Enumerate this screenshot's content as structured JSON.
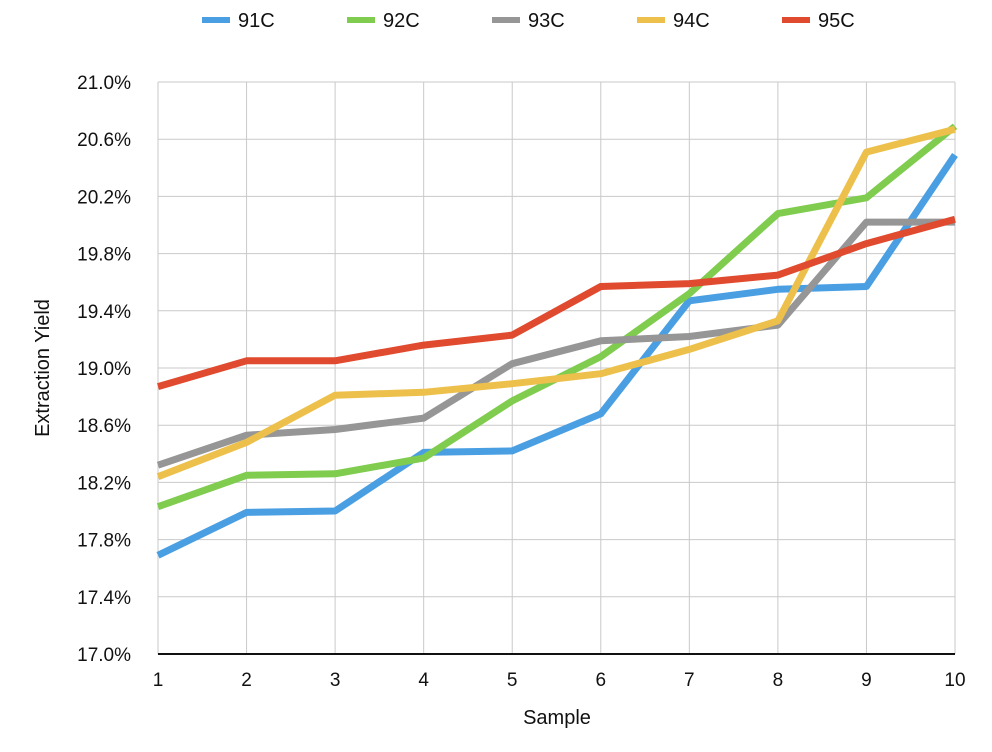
{
  "chart_data": {
    "type": "line",
    "title": "",
    "xlabel": "Sample",
    "ylabel": "Extraction Yield",
    "x": [
      1,
      2,
      3,
      4,
      5,
      6,
      7,
      8,
      9,
      10
    ],
    "x_tick_labels": [
      "1",
      "2",
      "3",
      "4",
      "5",
      "6",
      "7",
      "8",
      "9",
      "10"
    ],
    "ylim": [
      17.0,
      21.0
    ],
    "y_ticks": [
      17.0,
      17.4,
      17.8,
      18.2,
      18.6,
      19.0,
      19.4,
      19.8,
      20.2,
      20.6,
      21.0
    ],
    "y_tick_labels": [
      "17.0%",
      "17.4%",
      "17.8%",
      "18.2%",
      "18.6%",
      "19.0%",
      "19.4%",
      "19.8%",
      "20.2%",
      "20.6%",
      "21.0%"
    ],
    "grid": true,
    "legend_position": "top",
    "series": [
      {
        "name": "91C",
        "color": "#4a9fe3",
        "values": [
          17.69,
          17.99,
          18.0,
          18.41,
          18.42,
          18.68,
          19.47,
          19.55,
          19.57,
          20.49
        ]
      },
      {
        "name": "92C",
        "color": "#7fcc4e",
        "values": [
          18.03,
          18.25,
          18.26,
          18.37,
          18.77,
          19.08,
          19.52,
          20.08,
          20.19,
          20.69
        ]
      },
      {
        "name": "93C",
        "color": "#969696",
        "values": [
          18.32,
          18.53,
          18.57,
          18.65,
          19.03,
          19.19,
          19.22,
          19.3,
          20.02,
          20.02
        ]
      },
      {
        "name": "94C",
        "color": "#ecc04a",
        "values": [
          18.24,
          18.48,
          18.81,
          18.83,
          18.89,
          18.96,
          19.13,
          19.33,
          20.51,
          20.67
        ]
      },
      {
        "name": "95C",
        "color": "#e04a2e",
        "values": [
          18.87,
          19.05,
          19.05,
          19.16,
          19.23,
          19.57,
          19.59,
          19.65,
          19.87,
          20.04
        ]
      }
    ]
  }
}
